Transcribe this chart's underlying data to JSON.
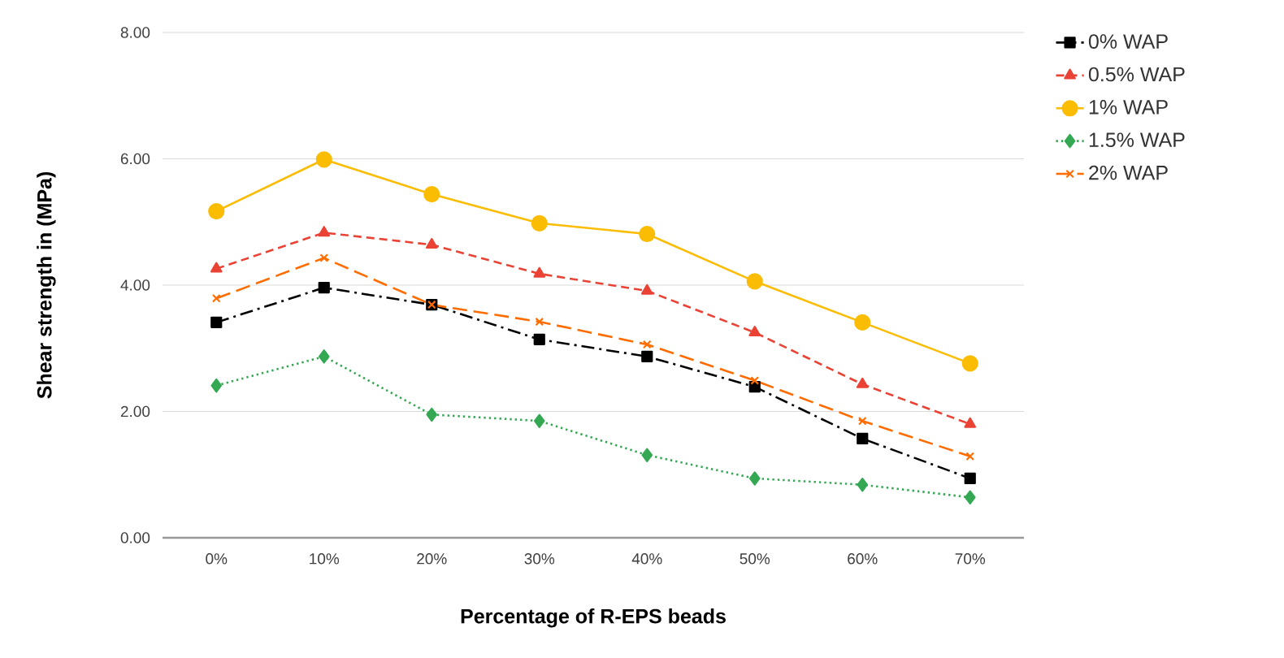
{
  "chart_data": {
    "type": "line",
    "xlabel": "Percentage of R-EPS beads",
    "ylabel": "Shear strength in (MPa)",
    "categories": [
      "0%",
      "10%",
      "20%",
      "30%",
      "40%",
      "50%",
      "60%",
      "70%"
    ],
    "ylim": [
      0,
      8
    ],
    "yticks": [
      {
        "value": 0,
        "label": "0.00"
      },
      {
        "value": 2,
        "label": "2.00"
      },
      {
        "value": 4,
        "label": "4.00"
      },
      {
        "value": 6,
        "label": "6.00"
      },
      {
        "value": 8,
        "label": "8.00"
      }
    ],
    "grid": "y",
    "legend": "top right",
    "series": [
      {
        "name": "0% WAP",
        "color": "#000000",
        "marker": "square",
        "line_style": "dashdot",
        "values": [
          3.41,
          3.96,
          3.69,
          3.14,
          2.87,
          2.39,
          1.57,
          0.94
        ]
      },
      {
        "name": "0.5% WAP",
        "color": "#ea4335",
        "marker": "triangle",
        "line_style": "dashed",
        "values": [
          4.26,
          4.83,
          4.64,
          4.18,
          3.91,
          3.25,
          2.43,
          1.8
        ]
      },
      {
        "name": "1% WAP",
        "color": "#fbbc04",
        "marker": "circle",
        "line_style": "solid",
        "values": [
          5.17,
          5.99,
          5.44,
          4.98,
          4.81,
          4.06,
          3.41,
          2.76
        ]
      },
      {
        "name": "1.5% WAP",
        "color": "#34a853",
        "marker": "diamond",
        "line_style": "dotted",
        "values": [
          2.41,
          2.87,
          1.95,
          1.85,
          1.31,
          0.94,
          0.84,
          0.64
        ]
      },
      {
        "name": "2% WAP",
        "color": "#ff6d01",
        "marker": "cross",
        "line_style": "longdashed",
        "values": [
          3.79,
          4.43,
          3.69,
          3.42,
          3.06,
          2.49,
          1.85,
          1.29
        ]
      }
    ]
  }
}
